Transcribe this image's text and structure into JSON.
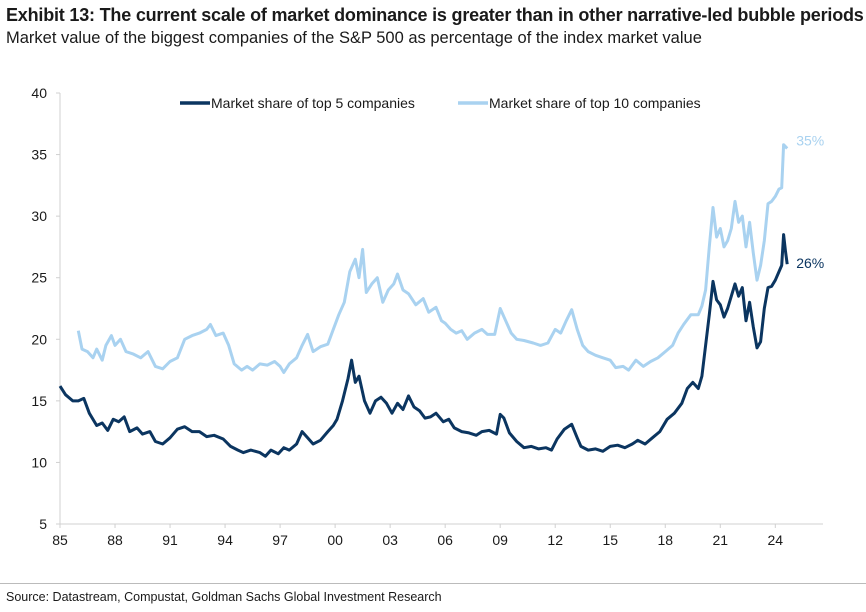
{
  "title": "Exhibit 13: The current scale of market dominance is greater than in other narrative-led bubble periods",
  "subtitle": "Market value of the biggest companies of the S&P 500 as percentage of the index market value",
  "source": "Source: Datastream, Compustat, Goldman Sachs Global Investment Research",
  "chart_data": {
    "type": "line",
    "title": "",
    "xlabel": "",
    "ylabel": "",
    "xlim": [
      1985,
      2026.6
    ],
    "ylim": [
      5,
      40
    ],
    "yticks": [
      5,
      10,
      15,
      20,
      25,
      30,
      35,
      40
    ],
    "xticks": [
      {
        "v": 1985,
        "label": "85"
      },
      {
        "v": 1988,
        "label": "88"
      },
      {
        "v": 1991,
        "label": "91"
      },
      {
        "v": 1994,
        "label": "94"
      },
      {
        "v": 1997,
        "label": "97"
      },
      {
        "v": 2000,
        "label": "00"
      },
      {
        "v": 2003,
        "label": "03"
      },
      {
        "v": 2006,
        "label": "06"
      },
      {
        "v": 2009,
        "label": "09"
      },
      {
        "v": 2012,
        "label": "12"
      },
      {
        "v": 2015,
        "label": "15"
      },
      {
        "v": 2018,
        "label": "18"
      },
      {
        "v": 2021,
        "label": "21"
      },
      {
        "v": 2024,
        "label": "24"
      }
    ],
    "grid": false,
    "legend": "top",
    "series": [
      {
        "name": "Market share of top 5 companies",
        "color": "#0b3560",
        "end_label": "26%",
        "x": [
          1985.0,
          1985.3,
          1985.7,
          1986.0,
          1986.3,
          1986.6,
          1987.0,
          1987.3,
          1987.6,
          1987.9,
          1988.2,
          1988.5,
          1988.8,
          1989.2,
          1989.5,
          1989.9,
          1990.2,
          1990.6,
          1991.0,
          1991.4,
          1991.8,
          1992.2,
          1992.6,
          1993.0,
          1993.4,
          1993.9,
          1994.3,
          1994.7,
          1995.0,
          1995.4,
          1995.9,
          1996.2,
          1996.5,
          1996.9,
          1997.2,
          1997.5,
          1997.9,
          1998.2,
          1998.5,
          1998.8,
          1999.2,
          1999.6,
          1999.9,
          2000.1,
          2000.4,
          2000.7,
          2000.9,
          2001.1,
          2001.3,
          2001.6,
          2001.9,
          2002.2,
          2002.5,
          2002.8,
          2003.1,
          2003.4,
          2003.7,
          2004.0,
          2004.3,
          2004.6,
          2004.9,
          2005.2,
          2005.5,
          2005.9,
          2006.2,
          2006.5,
          2006.9,
          2007.3,
          2007.7,
          2008.0,
          2008.4,
          2008.8,
          2009.0,
          2009.2,
          2009.5,
          2009.9,
          2010.3,
          2010.7,
          2011.1,
          2011.5,
          2011.8,
          2012.1,
          2012.5,
          2012.9,
          2013.2,
          2013.4,
          2013.8,
          2014.2,
          2014.6,
          2015.0,
          2015.4,
          2015.8,
          2016.2,
          2016.5,
          2016.9,
          2017.3,
          2017.7,
          2018.1,
          2018.5,
          2018.9,
          2019.2,
          2019.5,
          2019.8,
          2020.0,
          2020.2,
          2020.4,
          2020.6,
          2020.8,
          2021.0,
          2021.2,
          2021.4,
          2021.6,
          2021.8,
          2022.0,
          2022.2,
          2022.4,
          2022.6,
          2022.8,
          2023.0,
          2023.2,
          2023.4,
          2023.6,
          2023.8,
          2024.0,
          2024.2,
          2024.35,
          2024.45,
          2024.55,
          2024.65
        ],
        "y": [
          16.2,
          15.5,
          15.0,
          15.0,
          15.2,
          14.0,
          13.0,
          13.2,
          12.6,
          13.5,
          13.3,
          13.7,
          12.5,
          12.8,
          12.3,
          12.5,
          11.7,
          11.5,
          12.0,
          12.7,
          12.9,
          12.5,
          12.5,
          12.1,
          12.2,
          11.9,
          11.3,
          11.0,
          10.8,
          11.0,
          10.8,
          10.5,
          11.0,
          10.7,
          11.2,
          11.0,
          11.5,
          12.5,
          12.0,
          11.5,
          11.8,
          12.5,
          13.0,
          13.5,
          15.0,
          16.8,
          18.3,
          16.5,
          17.0,
          15.0,
          14.0,
          15.0,
          15.3,
          14.8,
          14.0,
          14.8,
          14.3,
          15.4,
          14.5,
          14.2,
          13.6,
          13.7,
          14.0,
          13.3,
          13.5,
          12.8,
          12.5,
          12.4,
          12.2,
          12.5,
          12.6,
          12.3,
          13.9,
          13.6,
          12.4,
          11.7,
          11.2,
          11.3,
          11.1,
          11.2,
          11.0,
          11.9,
          12.7,
          13.1,
          12.0,
          11.3,
          11.0,
          11.1,
          10.9,
          11.3,
          11.4,
          11.2,
          11.5,
          11.8,
          11.5,
          12.0,
          12.5,
          13.5,
          14.0,
          14.8,
          16.0,
          16.5,
          16.0,
          17.0,
          19.5,
          22.0,
          24.7,
          23.2,
          22.8,
          21.8,
          22.5,
          23.5,
          24.5,
          23.5,
          24.2,
          21.5,
          23.0,
          21.0,
          19.3,
          19.8,
          22.5,
          24.2,
          24.3,
          24.8,
          25.5,
          26.0,
          28.5,
          27.2,
          26.1
        ]
      },
      {
        "name": "Market share of top 10 companies",
        "color": "#a9d2f0",
        "end_label": "35%",
        "x": [
          1986.0,
          1986.2,
          1986.5,
          1986.8,
          1987.0,
          1987.3,
          1987.5,
          1987.8,
          1988.0,
          1988.3,
          1988.6,
          1989.0,
          1989.4,
          1989.8,
          1990.2,
          1990.6,
          1991.0,
          1991.4,
          1991.8,
          1992.2,
          1992.6,
          1993.0,
          1993.2,
          1993.5,
          1993.9,
          1994.2,
          1994.5,
          1994.9,
          1995.2,
          1995.5,
          1995.9,
          1996.3,
          1996.7,
          1997.0,
          1997.2,
          1997.5,
          1997.9,
          1998.2,
          1998.5,
          1998.8,
          1999.2,
          1999.6,
          1999.9,
          2000.2,
          2000.5,
          2000.8,
          2001.1,
          2001.3,
          2001.5,
          2001.7,
          2002.0,
          2002.3,
          2002.6,
          2002.9,
          2003.2,
          2003.4,
          2003.7,
          2004.0,
          2004.4,
          2004.8,
          2005.1,
          2005.5,
          2005.8,
          2006.0,
          2006.3,
          2006.6,
          2006.9,
          2007.2,
          2007.6,
          2008.0,
          2008.3,
          2008.7,
          2009.0,
          2009.3,
          2009.6,
          2009.9,
          2010.3,
          2010.8,
          2011.2,
          2011.6,
          2012.0,
          2012.3,
          2012.6,
          2012.9,
          2013.2,
          2013.5,
          2013.8,
          2014.2,
          2014.6,
          2015.0,
          2015.3,
          2015.7,
          2016.0,
          2016.4,
          2016.8,
          2017.2,
          2017.6,
          2018.0,
          2018.4,
          2018.7,
          2019.0,
          2019.4,
          2019.8,
          2020.0,
          2020.2,
          2020.4,
          2020.6,
          2020.8,
          2021.0,
          2021.2,
          2021.4,
          2021.6,
          2021.8,
          2022.0,
          2022.2,
          2022.4,
          2022.6,
          2022.8,
          2023.0,
          2023.2,
          2023.4,
          2023.6,
          2023.8,
          2024.0,
          2024.2,
          2024.35,
          2024.45,
          2024.65
        ],
        "y": [
          20.7,
          19.2,
          19.0,
          18.5,
          19.2,
          18.3,
          19.5,
          20.3,
          19.5,
          20.0,
          19.0,
          18.8,
          18.5,
          19.0,
          17.8,
          17.6,
          18.2,
          18.5,
          20.0,
          20.3,
          20.5,
          20.8,
          21.2,
          20.3,
          20.5,
          19.5,
          18.0,
          17.5,
          17.8,
          17.5,
          18.0,
          17.9,
          18.2,
          17.8,
          17.3,
          18.0,
          18.5,
          19.5,
          20.4,
          19.0,
          19.4,
          19.6,
          20.8,
          22.0,
          23.0,
          25.5,
          26.5,
          25.0,
          27.3,
          23.8,
          24.5,
          25.0,
          23.0,
          24.0,
          24.5,
          25.3,
          24.0,
          23.7,
          22.8,
          23.3,
          22.2,
          22.6,
          21.5,
          21.3,
          20.8,
          20.5,
          20.7,
          20.0,
          20.5,
          20.8,
          20.4,
          20.4,
          22.5,
          21.5,
          20.5,
          20.0,
          19.9,
          19.7,
          19.5,
          19.7,
          20.8,
          20.5,
          21.5,
          22.4,
          20.8,
          19.5,
          19.0,
          18.7,
          18.5,
          18.3,
          17.7,
          17.8,
          17.5,
          18.3,
          17.8,
          18.2,
          18.5,
          19.0,
          19.5,
          20.5,
          21.2,
          22.0,
          22.0,
          22.7,
          24.0,
          27.5,
          30.7,
          28.3,
          29.0,
          27.5,
          28.0,
          29.0,
          31.2,
          29.5,
          30.0,
          27.5,
          29.5,
          27.0,
          24.8,
          26.0,
          28.0,
          31.0,
          31.2,
          31.6,
          32.2,
          32.3,
          35.8,
          35.5
        ]
      }
    ]
  }
}
